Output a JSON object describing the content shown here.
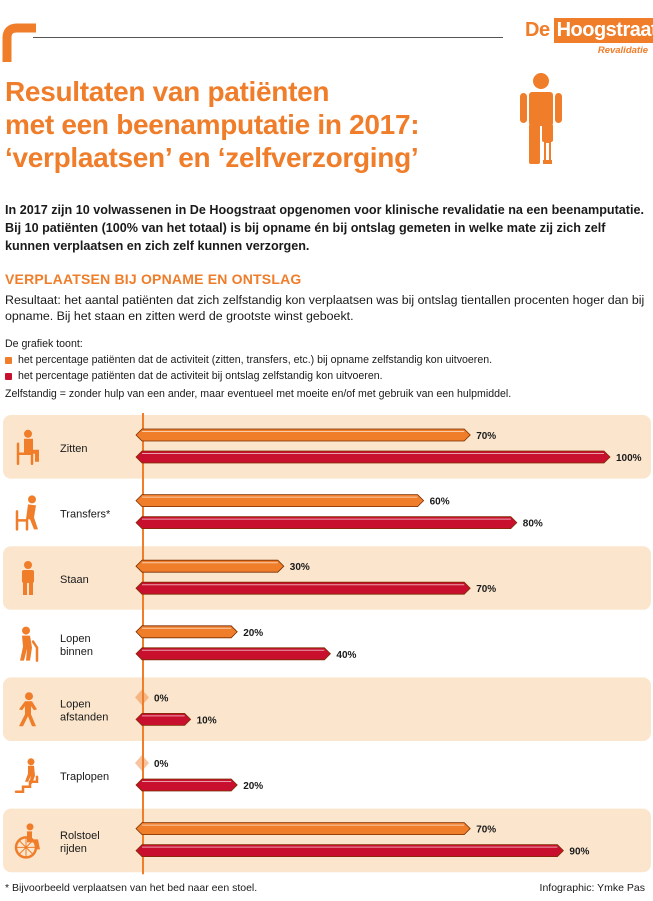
{
  "brand": {
    "name_part1": "De",
    "name_part2": "Hoogstraat",
    "subtitle": "Revalidatie",
    "accent": "#ef7d2a",
    "dark_red": "#c8102e"
  },
  "title": {
    "line1": "Resultaten van patiënten",
    "line2": "met een beenamputatie in 2017:",
    "line3": "‘verplaatsen’ en ‘zelfverzorging’"
  },
  "intro": "In 2017 zijn 10 volwassenen in De Hoogstraat opgenomen voor klinische revalidatie na een beenamputatie. Bij 10 patiënten (100% van het totaal) is bij opname én bij ontslag gemeten in welke mate zij zich zelf kunnen verplaatsen en zich zelf kunnen verzorgen.",
  "section": {
    "heading": "VERPLAATSEN BIJ OPNAME EN ONTSLAG",
    "result": "Resultaat: het aantal patiënten dat zich zelfstandig kon verplaatsen was bij ontslag tientallen procenten hoger dan bij opname. Bij het staan en zitten werd de grootste winst geboekt."
  },
  "legend": {
    "intro": "De grafiek toont:",
    "items": [
      {
        "label": "het percentage patiënten dat de activiteit (zitten, transfers, etc.) bij opname zelfstandig kon uitvoeren.",
        "color": "#ef7d2a"
      },
      {
        "label": "het percentage patiënten dat de activiteit bij ontslag zelfstandig kon uitvoeren.",
        "color": "#c8102e"
      }
    ]
  },
  "definition": "Zelfstandig = zonder hulp van een ander, maar eventueel met moeite en/of met gebruik van een hulpmiddel.",
  "chart_data": {
    "type": "bar",
    "orientation": "horizontal",
    "categories": [
      "Zitten",
      "Transfers*",
      "Staan",
      "Lopen binnen",
      "Lopen afstanden",
      "Traplopen",
      "Rolstoel rijden"
    ],
    "category_lines": [
      [
        "Zitten"
      ],
      [
        "Transfers*"
      ],
      [
        "Staan"
      ],
      [
        "Lopen",
        "binnen"
      ],
      [
        "Lopen",
        "afstanden"
      ],
      [
        "Traplopen"
      ],
      [
        "Rolstoel",
        "rijden"
      ]
    ],
    "category_icons": [
      "sitting-person-icon",
      "transfer-person-icon",
      "standing-person-icon",
      "walking-cane-icon",
      "walking-person-icon",
      "stairs-person-icon",
      "wheelchair-icon"
    ],
    "series": [
      {
        "values": [
          70,
          60,
          30,
          20,
          0,
          0,
          70
        ],
        "color": "#ef7d2a"
      },
      {
        "values": [
          100,
          80,
          70,
          40,
          10,
          20,
          90
        ],
        "color": "#c8102e"
      }
    ],
    "value_labels": [
      [
        "70%",
        "60%",
        "30%",
        "20%",
        "0%",
        "0%",
        "70%"
      ],
      [
        "100%",
        "80%",
        "70%",
        "40%",
        "10%",
        "20%",
        "90%"
      ]
    ],
    "xlim": [
      0,
      100
    ],
    "grid": false,
    "row_shading": [
      "#fbe6cd",
      "#ffffff"
    ]
  },
  "footer": {
    "note": "* Bijvoorbeeld verplaatsen van het bed naar een stoel.",
    "credit": "Infographic: Ymke Pas"
  }
}
